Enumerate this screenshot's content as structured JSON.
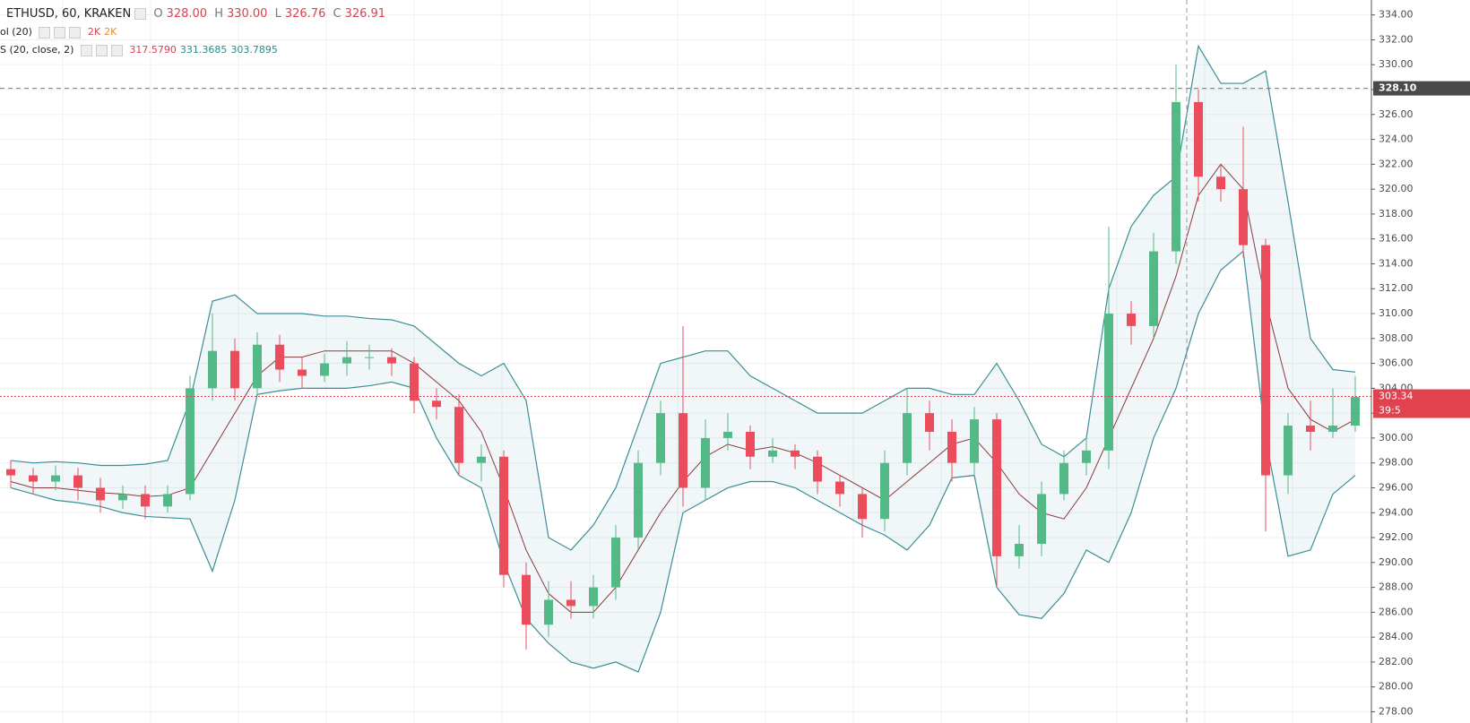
{
  "legend": {
    "title": "ETHUSD, 60, KRAKEN",
    "ohlc": [
      {
        "key": "O",
        "value": "328.00"
      },
      {
        "key": "H",
        "value": "330.00"
      },
      {
        "key": "L",
        "value": "326.76"
      },
      {
        "key": "C",
        "value": "326.91"
      }
    ],
    "volume": {
      "name": "ol (20)",
      "values": [
        "2K",
        "2K"
      ]
    },
    "bb": {
      "name": "S (20, close, 2)",
      "values": [
        "317.5790",
        "331.3685",
        "303.7895"
      ]
    }
  },
  "chart_data": {
    "type": "candlestick",
    "open": [
      297.5,
      297,
      296.5,
      297,
      296,
      295,
      295.5,
      294.5,
      295.5,
      304,
      307,
      304,
      307.5,
      305.5,
      305,
      306,
      306.5,
      306.5,
      306,
      303,
      302.5,
      298,
      298.5,
      289,
      285,
      287,
      286.5,
      288,
      292,
      298,
      302,
      296,
      300,
      300.5,
      298.5,
      299,
      298.5,
      296.5,
      295.5,
      293.5,
      298,
      302,
      300.5,
      298,
      301.5,
      290.5,
      291.5,
      295.5,
      298,
      299,
      310,
      309,
      315,
      327,
      321,
      320,
      315.5,
      297,
      301,
      300.5,
      301
    ],
    "high": [
      298.2,
      297.6,
      297.8,
      297.6,
      296.8,
      296.2,
      296.2,
      296.2,
      305,
      310,
      308,
      308.5,
      308.3,
      306.5,
      306.8,
      307.8,
      307.5,
      307.2,
      306.5,
      304,
      303.5,
      299.5,
      299,
      290,
      288.5,
      288.5,
      289,
      293,
      299,
      303,
      309,
      301.5,
      302,
      301,
      300,
      299.5,
      299,
      297,
      296,
      299,
      304,
      303,
      301.5,
      302.5,
      302,
      293,
      296.5,
      299,
      300,
      317,
      311,
      316.5,
      330,
      328,
      322,
      325,
      316,
      302,
      303,
      304,
      305
    ],
    "low": [
      296,
      295.5,
      295.8,
      295,
      294,
      294.3,
      293.5,
      294,
      295,
      303,
      303,
      303.5,
      304.5,
      304,
      304.5,
      305,
      305.5,
      305,
      302,
      301.5,
      297,
      296.5,
      288,
      283,
      284,
      285.5,
      285.5,
      287,
      291,
      297,
      294.5,
      295,
      299,
      297.5,
      298,
      297.5,
      295.5,
      294.5,
      292,
      292.5,
      297,
      299,
      296.5,
      297,
      288,
      289.5,
      290.5,
      295,
      297,
      297.5,
      307.5,
      308,
      314,
      319,
      319,
      314.5,
      292.5,
      295.5,
      299,
      300,
      300.5
    ],
    "close": [
      297,
      296.5,
      297,
      296,
      295,
      295.5,
      294.5,
      295.5,
      304,
      307,
      304,
      307.5,
      305.5,
      305,
      306,
      306.5,
      306.5,
      306,
      303,
      302.5,
      298,
      298.5,
      289,
      285,
      287,
      286.5,
      288,
      292,
      298,
      302,
      296,
      300,
      300.5,
      298.5,
      299,
      298.5,
      296.5,
      295.5,
      293.5,
      298,
      302,
      300.5,
      298,
      301.5,
      290.5,
      291.5,
      295.5,
      298,
      299,
      310,
      309,
      315,
      327,
      321,
      320,
      315.5,
      297,
      301,
      300.5,
      301,
      303.3
    ],
    "up_color": "#53b987",
    "down_color": "#eb4d5c",
    "bands": {
      "upper": [
        298.2,
        298,
        298.1,
        298,
        297.8,
        297.8,
        297.9,
        298.2,
        303,
        311,
        311.5,
        310,
        310,
        310,
        309.8,
        309.8,
        309.6,
        309.5,
        309,
        307.5,
        306,
        305,
        306,
        303,
        292,
        291,
        293,
        296,
        301,
        306,
        306.5,
        307,
        307,
        305,
        304,
        303,
        302,
        302,
        302,
        303,
        304,
        304,
        303.5,
        303.5,
        306,
        303,
        299.5,
        298.5,
        300,
        312,
        317,
        319.5,
        321,
        331.5,
        328.5,
        328.5,
        329.5,
        319,
        308,
        305.5,
        305.3
      ],
      "middle": [
        296.5,
        296,
        296,
        295.8,
        295.6,
        295.5,
        295.3,
        295.4,
        296,
        299,
        302,
        305,
        306.5,
        306.5,
        307,
        307,
        307,
        307,
        306,
        304.5,
        303,
        300.5,
        296,
        291,
        287.5,
        286,
        286,
        288,
        291,
        294,
        296.5,
        298.5,
        299.5,
        299,
        299.3,
        298.8,
        298,
        297,
        296,
        295,
        296.5,
        298,
        299.5,
        300,
        298,
        295.5,
        294,
        293.5,
        296,
        300,
        304,
        308,
        313,
        319.5,
        322,
        320,
        311,
        304,
        301.5,
        300.5,
        301.5
      ],
      "lower": [
        296,
        295.5,
        295,
        294.8,
        294.5,
        294,
        293.7,
        293.6,
        293.5,
        289.3,
        295,
        303.5,
        303.8,
        304,
        304,
        304,
        304.2,
        304.5,
        304,
        300,
        297,
        296,
        290,
        285.5,
        283.5,
        282,
        281.5,
        282,
        281.2,
        286,
        294,
        295,
        296,
        296.5,
        296.5,
        296,
        295,
        294,
        293,
        292.2,
        291,
        293,
        296.8,
        297,
        288,
        285.8,
        285.5,
        287.5,
        291,
        290,
        294,
        300,
        304,
        310,
        313.5,
        315,
        300,
        290.5,
        291,
        295.5,
        297
      ],
      "band_color": "#3b8e96",
      "middle_color": "#8b3a3a"
    },
    "ylim": [
      277.1,
      335.2
    ],
    "yticks": [
      {
        "value": 278,
        "label": "278.00"
      },
      {
        "value": 280,
        "label": "280.00"
      },
      {
        "value": 282,
        "label": "282.00"
      },
      {
        "value": 284,
        "label": "284.00"
      },
      {
        "value": 286,
        "label": "286.00"
      },
      {
        "value": 288,
        "label": "288.00"
      },
      {
        "value": 290,
        "label": "290.00"
      },
      {
        "value": 292,
        "label": "292.00"
      },
      {
        "value": 294,
        "label": "294.00"
      },
      {
        "value": 296,
        "label": "296.00"
      },
      {
        "value": 298,
        "label": "298.00"
      },
      {
        "value": 300,
        "label": "300.00"
      },
      {
        "value": 302,
        "label": "302.00"
      },
      {
        "value": 304,
        "label": "304.00"
      },
      {
        "value": 306,
        "label": "306.00"
      },
      {
        "value": 308,
        "label": "308.00"
      },
      {
        "value": 310,
        "label": "310.00"
      },
      {
        "value": 312,
        "label": "312.00"
      },
      {
        "value": 314,
        "label": "314.00"
      },
      {
        "value": 316,
        "label": "316.00"
      },
      {
        "value": 318,
        "label": "318.00"
      },
      {
        "value": 320,
        "label": "320.00"
      },
      {
        "value": 322,
        "label": "322.00"
      },
      {
        "value": 324,
        "label": "324.00"
      },
      {
        "value": 326,
        "label": "326.00"
      },
      {
        "value": 328,
        "label": "328.00"
      },
      {
        "value": 330,
        "label": "330.00"
      },
      {
        "value": 332,
        "label": "332.00"
      },
      {
        "value": 334,
        "label": "334.00"
      }
    ],
    "grid": true,
    "crosshair": {
      "value": 328.1,
      "label": "328.10"
    },
    "last_price": {
      "value": 303.34,
      "label": "303.34",
      "countdown": "39:5"
    }
  }
}
